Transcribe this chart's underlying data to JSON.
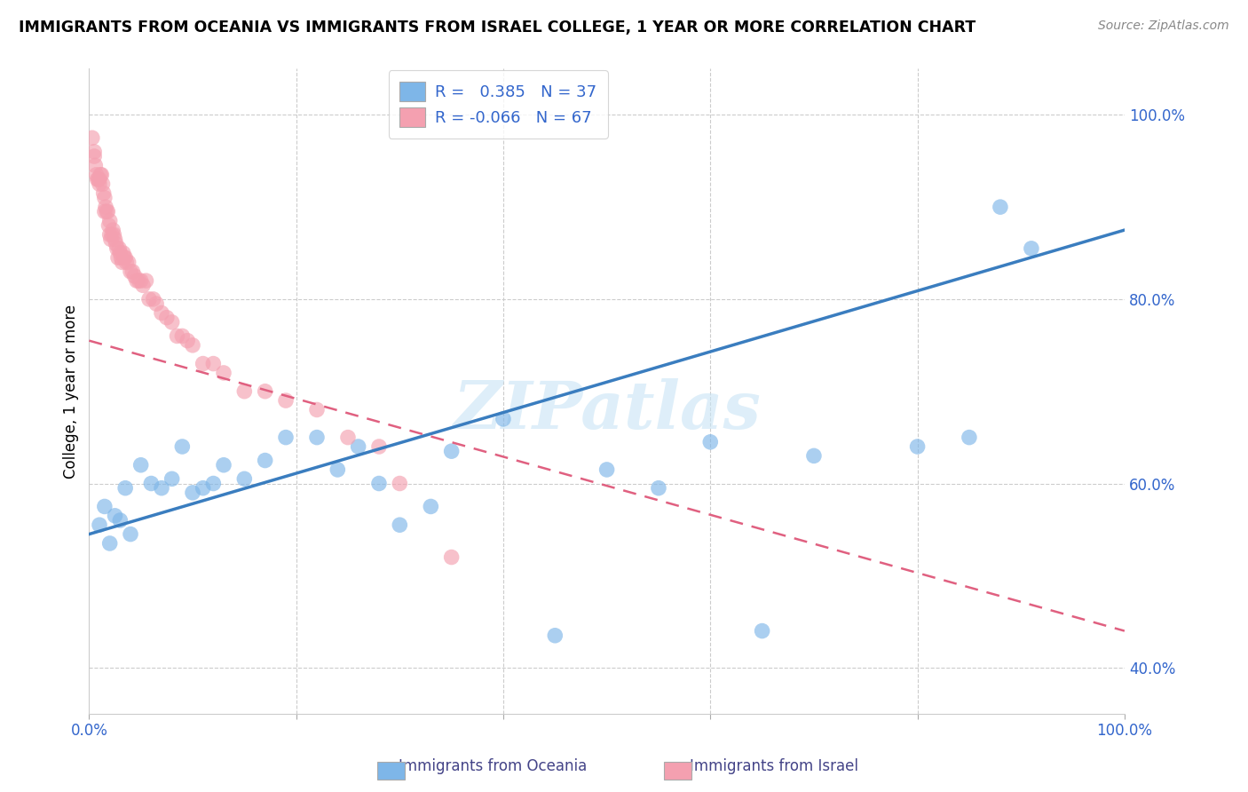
{
  "title": "IMMIGRANTS FROM OCEANIA VS IMMIGRANTS FROM ISRAEL COLLEGE, 1 YEAR OR MORE CORRELATION CHART",
  "source": "Source: ZipAtlas.com",
  "ylabel": "College, 1 year or more",
  "xlim": [
    0.0,
    1.0
  ],
  "ylim": [
    0.35,
    1.05
  ],
  "x_ticks": [
    0.0,
    0.2,
    0.4,
    0.6,
    0.8,
    1.0
  ],
  "x_tick_labels": [
    "0.0%",
    "",
    "",
    "",
    "",
    "100.0%"
  ],
  "y_tick_labels_right": [
    "100.0%",
    "80.0%",
    "60.0%",
    "40.0%"
  ],
  "y_ticks_right": [
    1.0,
    0.8,
    0.6,
    0.4
  ],
  "watermark": "ZIPatlas",
  "legend": {
    "oceania_R": "0.385",
    "oceania_N": "37",
    "israel_R": "-0.066",
    "israel_N": "67"
  },
  "oceania_color": "#7EB6E8",
  "israel_color": "#F4A0B0",
  "oceania_line_color": "#3A7DBF",
  "israel_line_color": "#E06080",
  "oceania_scatter_x": [
    0.01,
    0.015,
    0.02,
    0.025,
    0.03,
    0.035,
    0.04,
    0.05,
    0.06,
    0.07,
    0.08,
    0.09,
    0.1,
    0.11,
    0.12,
    0.13,
    0.15,
    0.17,
    0.19,
    0.22,
    0.24,
    0.26,
    0.28,
    0.3,
    0.33,
    0.35,
    0.4,
    0.45,
    0.5,
    0.55,
    0.6,
    0.65,
    0.7,
    0.8,
    0.85,
    0.88,
    0.91
  ],
  "oceania_scatter_y": [
    0.555,
    0.575,
    0.535,
    0.565,
    0.56,
    0.595,
    0.545,
    0.62,
    0.6,
    0.595,
    0.605,
    0.64,
    0.59,
    0.595,
    0.6,
    0.62,
    0.605,
    0.625,
    0.65,
    0.65,
    0.615,
    0.64,
    0.6,
    0.555,
    0.575,
    0.635,
    0.67,
    0.435,
    0.615,
    0.595,
    0.645,
    0.44,
    0.63,
    0.64,
    0.65,
    0.9,
    0.855
  ],
  "israel_scatter_x": [
    0.003,
    0.005,
    0.005,
    0.006,
    0.007,
    0.008,
    0.009,
    0.01,
    0.01,
    0.011,
    0.012,
    0.013,
    0.014,
    0.015,
    0.015,
    0.016,
    0.017,
    0.018,
    0.019,
    0.02,
    0.02,
    0.021,
    0.022,
    0.023,
    0.024,
    0.025,
    0.026,
    0.027,
    0.028,
    0.029,
    0.03,
    0.031,
    0.032,
    0.033,
    0.034,
    0.035,
    0.036,
    0.038,
    0.04,
    0.042,
    0.044,
    0.046,
    0.048,
    0.05,
    0.052,
    0.055,
    0.058,
    0.062,
    0.065,
    0.07,
    0.075,
    0.08,
    0.085,
    0.09,
    0.095,
    0.1,
    0.11,
    0.12,
    0.13,
    0.15,
    0.17,
    0.19,
    0.22,
    0.25,
    0.28,
    0.3,
    0.35
  ],
  "israel_scatter_y": [
    0.975,
    0.96,
    0.955,
    0.945,
    0.935,
    0.93,
    0.93,
    0.925,
    0.93,
    0.935,
    0.935,
    0.925,
    0.915,
    0.91,
    0.895,
    0.9,
    0.895,
    0.895,
    0.88,
    0.885,
    0.87,
    0.865,
    0.87,
    0.875,
    0.87,
    0.865,
    0.86,
    0.855,
    0.845,
    0.855,
    0.85,
    0.845,
    0.84,
    0.85,
    0.845,
    0.845,
    0.84,
    0.84,
    0.83,
    0.83,
    0.825,
    0.82,
    0.82,
    0.82,
    0.815,
    0.82,
    0.8,
    0.8,
    0.795,
    0.785,
    0.78,
    0.775,
    0.76,
    0.76,
    0.755,
    0.75,
    0.73,
    0.73,
    0.72,
    0.7,
    0.7,
    0.69,
    0.68,
    0.65,
    0.64,
    0.6,
    0.52
  ],
  "oceania_line_x0": 0.0,
  "oceania_line_x1": 1.0,
  "oceania_line_y0": 0.545,
  "oceania_line_y1": 0.875,
  "israel_line_x0": 0.0,
  "israel_line_x1": 1.0,
  "israel_line_y0": 0.755,
  "israel_line_y1": 0.44
}
